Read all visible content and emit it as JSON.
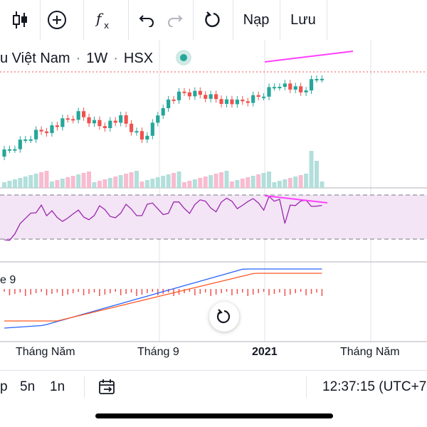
{
  "toolbar": {
    "load_label": "Nạp",
    "save_label": "Lưu"
  },
  "legend": {
    "symbol_name": "u Việt Nam",
    "separator": "·",
    "interval": "1W",
    "exchange": "HSX"
  },
  "macd_label": "e 9",
  "x_axis": {
    "labels": [
      "Tháng Năm",
      "Tháng 9",
      "2021",
      "Tháng Năm"
    ]
  },
  "bottom_bar": {
    "ranges": [
      "p",
      "5n",
      "1n"
    ],
    "time": "12:37:15 (UTC+7"
  },
  "colors": {
    "up": "#26a69a",
    "down": "#ef5350",
    "rsi_line": "#9c27b0",
    "rsi_band": "#f3e5f5",
    "macd_line": "#2962ff",
    "signal_line": "#ff5722",
    "annotation": "#ff40ff"
  }
}
